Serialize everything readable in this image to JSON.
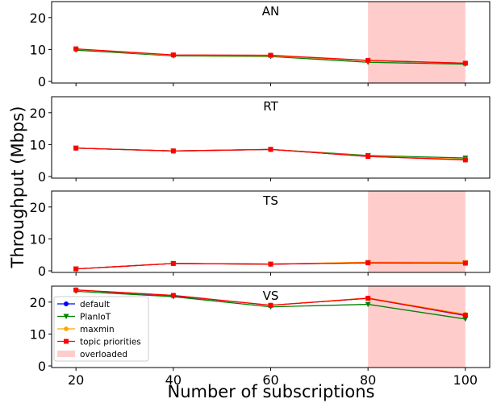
{
  "chart_data": {
    "type": "line",
    "ylabel": "Throughput (Mbps)",
    "xlabel": "Number of subscriptions",
    "x": [
      20,
      40,
      60,
      80,
      100
    ],
    "x_ticks": [
      "20",
      "40",
      "60",
      "80",
      "100"
    ],
    "xlim": [
      15,
      105
    ],
    "ylim": [
      -0.5,
      25
    ],
    "y_ticks": [
      "0",
      "10",
      "20"
    ],
    "shared_x_axis": true,
    "shaded_region": {
      "label": "overloaded",
      "x_range": [
        80,
        100
      ],
      "color": "#ffcccc"
    },
    "legend": {
      "placement": "lower-left of bottom panel",
      "entries": [
        {
          "label": "default",
          "color": "#0000ff",
          "marker": "circle"
        },
        {
          "label": "PlanIoT",
          "color": "#008000",
          "marker": "triangle-down"
        },
        {
          "label": "maxmin",
          "color": "#ffa500",
          "marker": "pentagon"
        },
        {
          "label": "topic priorities",
          "color": "#ff0000",
          "marker": "square"
        },
        {
          "label": "overloaded",
          "color": "#ffcccc",
          "marker": "patch"
        }
      ]
    },
    "panels": [
      {
        "title": "AN",
        "shaded": true,
        "series": [
          {
            "name": "default",
            "values": [
              10.1,
              8.2,
              8.0,
              6.5,
              5.7
            ]
          },
          {
            "name": "PlanIoT",
            "values": [
              9.8,
              8.0,
              7.8,
              6.0,
              5.4
            ]
          },
          {
            "name": "maxmin",
            "values": [
              10.1,
              8.2,
              8.0,
              6.5,
              5.7
            ]
          },
          {
            "name": "topic priorities",
            "values": [
              10.2,
              8.3,
              8.2,
              6.6,
              5.7
            ]
          }
        ]
      },
      {
        "title": "RT",
        "shaded": false,
        "series": [
          {
            "name": "default",
            "values": [
              8.9,
              8.0,
              8.5,
              6.3,
              5.3
            ]
          },
          {
            "name": "PlanIoT",
            "values": [
              8.9,
              8.0,
              8.5,
              6.6,
              5.8
            ]
          },
          {
            "name": "maxmin",
            "values": [
              8.9,
              8.0,
              8.5,
              6.4,
              5.4
            ]
          },
          {
            "name": "topic priorities",
            "values": [
              8.9,
              8.0,
              8.5,
              6.3,
              5.2
            ]
          }
        ]
      },
      {
        "title": "TS",
        "shaded": true,
        "series": [
          {
            "name": "default",
            "values": [
              0.6,
              2.3,
              2.1,
              2.5,
              2.5
            ]
          },
          {
            "name": "PlanIoT",
            "values": [
              0.6,
              2.3,
              2.1,
              2.6,
              2.5
            ]
          },
          {
            "name": "maxmin",
            "values": [
              0.6,
              2.3,
              2.1,
              2.7,
              2.7
            ]
          },
          {
            "name": "topic priorities",
            "values": [
              0.6,
              2.3,
              2.1,
              2.5,
              2.4
            ]
          }
        ]
      },
      {
        "title": "VS",
        "shaded": true,
        "series": [
          {
            "name": "default",
            "values": [
              23.8,
              22.0,
              19.0,
              21.2,
              15.8
            ]
          },
          {
            "name": "PlanIoT",
            "values": [
              23.4,
              21.7,
              18.5,
              19.3,
              14.7
            ]
          },
          {
            "name": "maxmin",
            "values": [
              23.8,
              22.1,
              19.0,
              21.3,
              16.2
            ]
          },
          {
            "name": "topic priorities",
            "values": [
              23.8,
              22.1,
              19.0,
              21.2,
              15.9
            ]
          }
        ]
      }
    ]
  }
}
